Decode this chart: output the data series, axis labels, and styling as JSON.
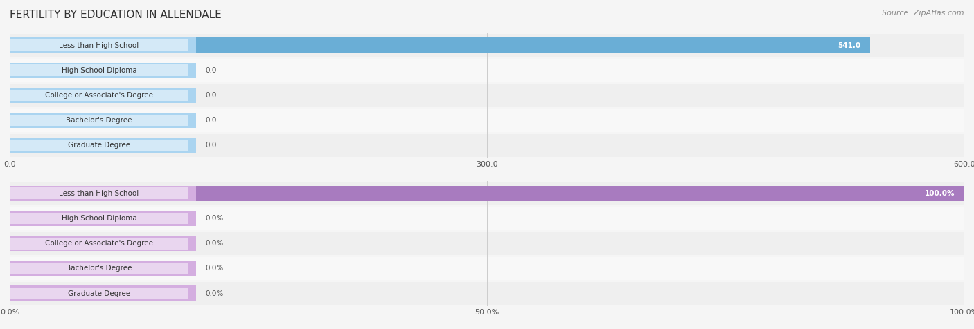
{
  "title": "FERTILITY BY EDUCATION IN ALLENDALE",
  "source": "Source: ZipAtlas.com",
  "categories": [
    "Less than High School",
    "High School Diploma",
    "College or Associate's Degree",
    "Bachelor's Degree",
    "Graduate Degree"
  ],
  "values_abs": [
    541.0,
    0.0,
    0.0,
    0.0,
    0.0
  ],
  "values_pct": [
    100.0,
    0.0,
    0.0,
    0.0,
    0.0
  ],
  "xlim_abs": [
    0,
    600.0
  ],
  "xlim_pct": [
    0,
    100.0
  ],
  "xticks_abs": [
    0.0,
    300.0,
    600.0
  ],
  "xticks_pct": [
    0.0,
    50.0,
    100.0
  ],
  "xticklabels_abs": [
    "0.0",
    "300.0",
    "600.0"
  ],
  "xticklabels_pct": [
    "0.0%",
    "50.0%",
    "100.0%"
  ],
  "bar_color_abs_main": "#6aaed6",
  "bar_color_abs_label": "#aad4f0",
  "bar_color_pct_main": "#a87bbf",
  "bar_color_pct_label": "#d4aee0",
  "background_color": "#f5f5f5",
  "title_fontsize": 11,
  "label_fontsize": 7.5,
  "tick_fontsize": 8,
  "source_fontsize": 8
}
